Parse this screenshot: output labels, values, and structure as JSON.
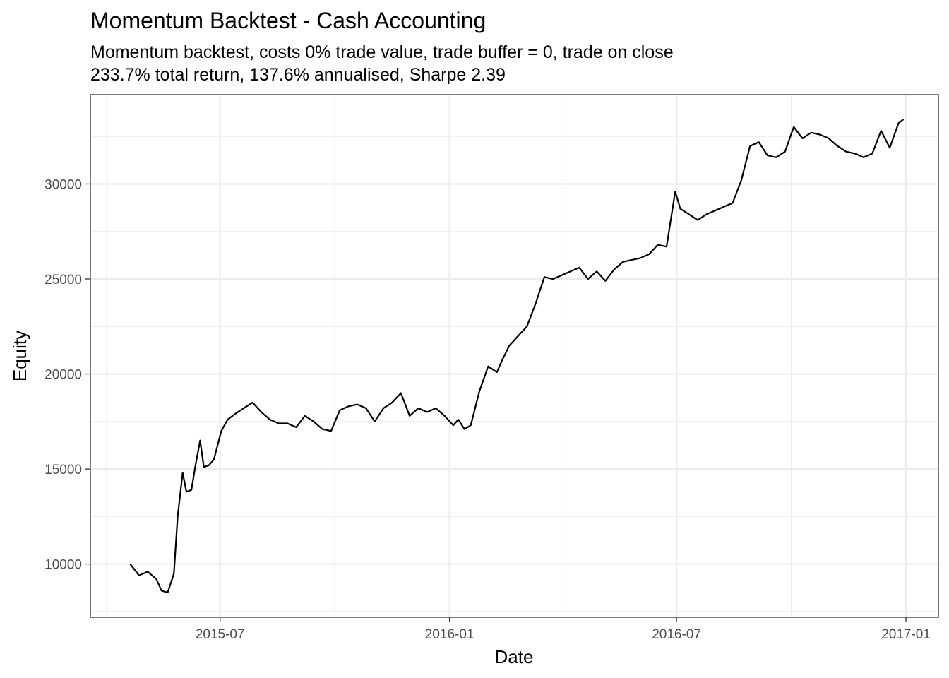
{
  "chart_data": {
    "type": "line",
    "title": "Momentum Backtest - Cash Accounting",
    "subtitle_lines": [
      "Momentum backtest, costs 0% trade value, trade buffer = 0, trade on close",
      "233.7% total return, 137.6% annualised, Sharpe 2.39"
    ],
    "xlabel": "Date",
    "ylabel": "Equity",
    "x_type": "date",
    "xlim": [
      "2015-03-19",
      "2017-01-27"
    ],
    "ylim": [
      7200,
      34700
    ],
    "x_ticks": [
      {
        "value": "2015-07-01",
        "label": "2015-07"
      },
      {
        "value": "2016-01-01",
        "label": "2016-01"
      },
      {
        "value": "2016-07-01",
        "label": "2016-07"
      },
      {
        "value": "2017-01-01",
        "label": "2017-01"
      }
    ],
    "x_minor_ticks": [
      "2015-04-01",
      "2015-10-01",
      "2016-04-01",
      "2016-10-01"
    ],
    "y_ticks": [
      10000,
      15000,
      20000,
      25000,
      30000
    ],
    "y_minor_ticks": [
      7500,
      12500,
      17500,
      22500,
      27500,
      32500
    ],
    "grid": true,
    "line_color": "#000000",
    "series": [
      {
        "x": [
          "2015-04-20",
          "2015-04-27",
          "2015-05-04",
          "2015-05-11",
          "2015-05-15",
          "2015-05-20",
          "2015-05-25",
          "2015-05-28",
          "2015-06-01",
          "2015-06-04",
          "2015-06-08",
          "2015-06-11",
          "2015-06-15",
          "2015-06-18",
          "2015-06-22",
          "2015-06-26",
          "2015-07-02",
          "2015-07-07",
          "2015-07-13",
          "2015-07-20",
          "2015-07-27",
          "2015-08-03",
          "2015-08-10",
          "2015-08-17",
          "2015-08-24",
          "2015-08-31",
          "2015-09-07",
          "2015-09-14",
          "2015-09-21",
          "2015-09-28",
          "2015-10-05",
          "2015-10-12",
          "2015-10-19",
          "2015-10-26",
          "2015-11-02",
          "2015-11-09",
          "2015-11-16",
          "2015-11-23",
          "2015-11-30",
          "2015-12-07",
          "2015-12-14",
          "2015-12-21",
          "2015-12-28",
          "2016-01-04",
          "2016-01-08",
          "2016-01-13",
          "2016-01-18",
          "2016-01-25",
          "2016-02-01",
          "2016-02-08",
          "2016-02-12",
          "2016-02-18",
          "2016-02-25",
          "2016-03-03",
          "2016-03-10",
          "2016-03-17",
          "2016-03-24",
          "2016-03-31",
          "2016-04-07",
          "2016-04-14",
          "2016-04-21",
          "2016-04-28",
          "2016-05-05",
          "2016-05-12",
          "2016-05-19",
          "2016-05-26",
          "2016-06-02",
          "2016-06-09",
          "2016-06-16",
          "2016-06-23",
          "2016-06-30",
          "2016-07-04",
          "2016-07-11",
          "2016-07-18",
          "2016-07-25",
          "2016-08-01",
          "2016-08-08",
          "2016-08-15",
          "2016-08-22",
          "2016-08-29",
          "2016-09-05",
          "2016-09-12",
          "2016-09-19",
          "2016-09-26",
          "2016-10-03",
          "2016-10-10",
          "2016-10-17",
          "2016-10-24",
          "2016-10-31",
          "2016-11-07",
          "2016-11-14",
          "2016-11-21",
          "2016-11-28",
          "2016-12-05",
          "2016-12-12",
          "2016-12-19",
          "2016-12-26",
          "2016-12-30"
        ],
        "y": [
          10000,
          9400,
          9600,
          9200,
          8600,
          8500,
          9500,
          12500,
          14800,
          13800,
          13900,
          15100,
          16500,
          15100,
          15200,
          15500,
          17000,
          17600,
          17900,
          18200,
          18500,
          18000,
          17600,
          17400,
          17400,
          17200,
          17800,
          17500,
          17100,
          17000,
          18100,
          18300,
          18400,
          18200,
          17500,
          18200,
          18500,
          19000,
          17800,
          18200,
          18000,
          18200,
          17800,
          17300,
          17600,
          17100,
          17300,
          19100,
          20400,
          20100,
          20700,
          21500,
          22000,
          22500,
          23700,
          25100,
          25000,
          25200,
          25400,
          25600,
          25000,
          25400,
          24900,
          25500,
          25900,
          26000,
          26100,
          26300,
          26800,
          26700,
          29600,
          28700,
          28400,
          28100,
          28400,
          28600,
          28800,
          29000,
          30200,
          32000,
          32200,
          31500,
          31400,
          31700,
          33000,
          32400,
          32700,
          32600,
          32400,
          32000,
          31700,
          31600,
          31400,
          31600,
          32800,
          31900,
          33200,
          33400
        ]
      }
    ]
  }
}
